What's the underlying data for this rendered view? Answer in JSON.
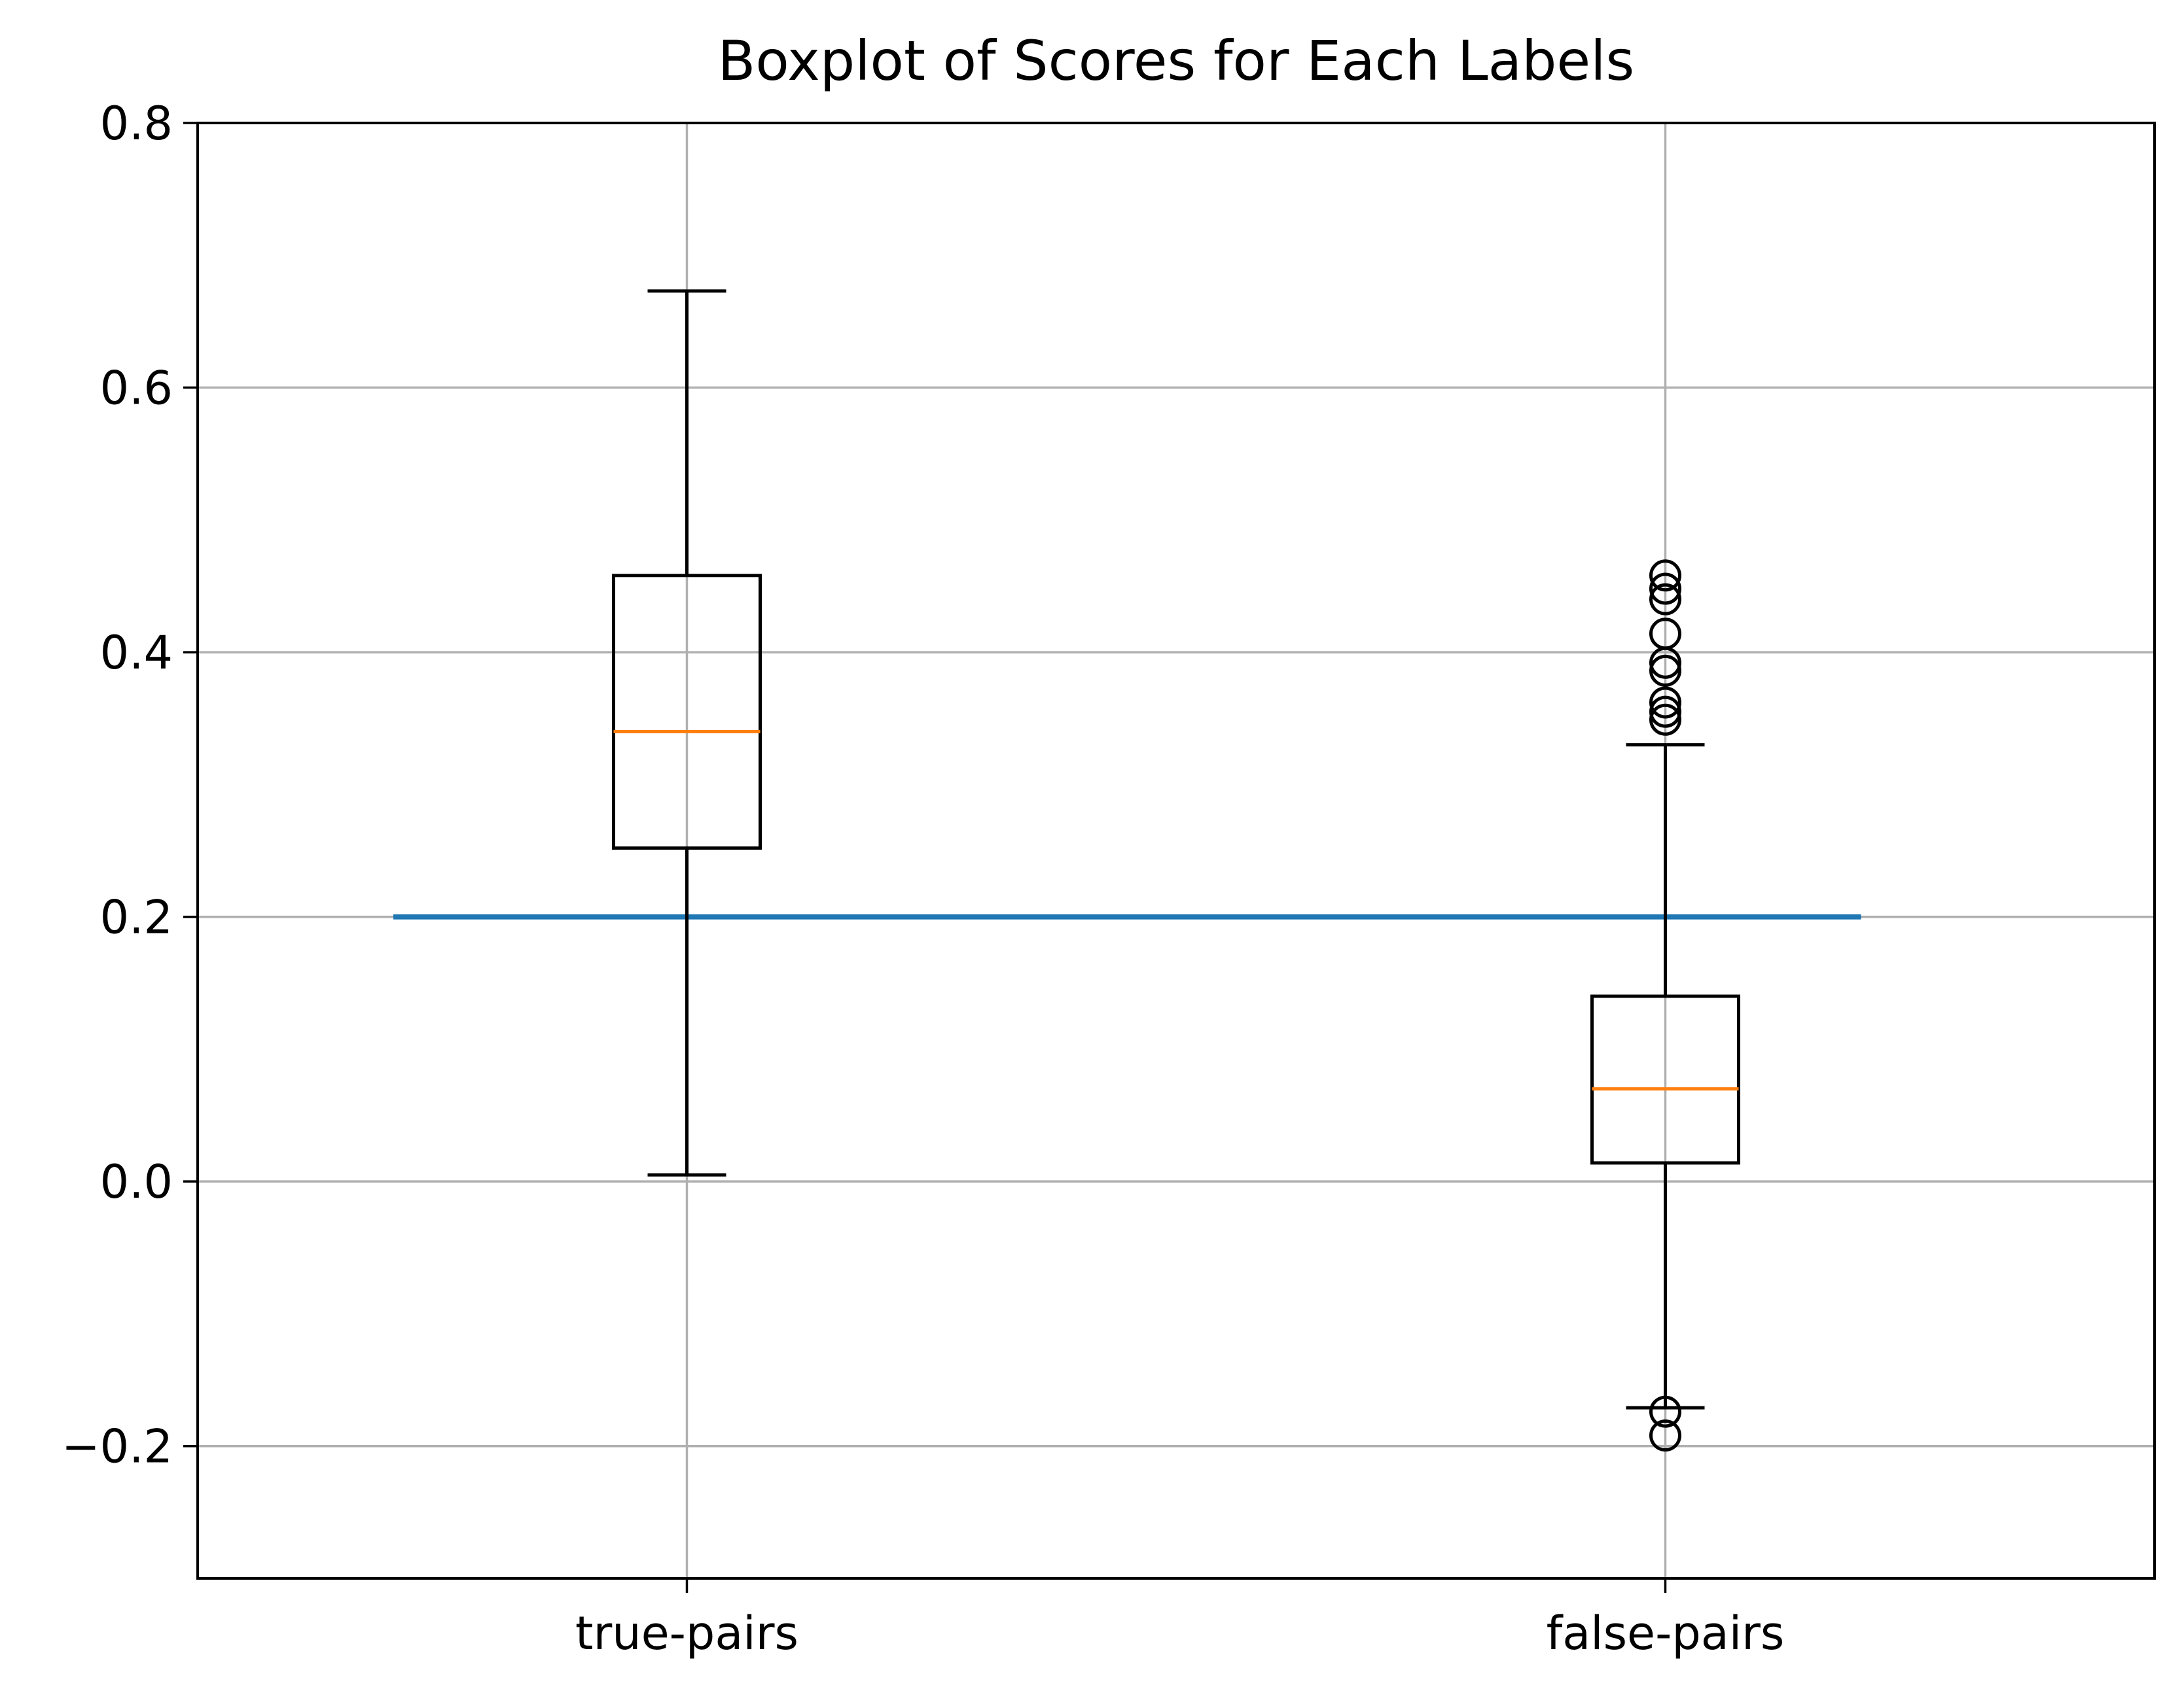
{
  "chart_data": {
    "type": "boxplot",
    "title": "Boxplot of Scores for Each Labels",
    "xlabel": "",
    "ylabel": "",
    "categories": [
      "true-pairs",
      "false-pairs"
    ],
    "ylim": [
      -0.3,
      0.8
    ],
    "yticks": [
      -0.2,
      0.0,
      0.2,
      0.4,
      0.6,
      0.8
    ],
    "ytick_labels": [
      "−0.2",
      "0.0",
      "0.2",
      "0.4",
      "0.6",
      "0.8"
    ],
    "grid": true,
    "boxes": [
      {
        "category": "true-pairs",
        "whisker_low": 0.005,
        "q1": 0.252,
        "median": 0.34,
        "q3": 0.458,
        "whisker_high": 0.673,
        "outliers": []
      },
      {
        "category": "false-pairs",
        "whisker_low": -0.171,
        "q1": 0.014,
        "median": 0.07,
        "q3": 0.14,
        "whisker_high": 0.33,
        "outliers": [
          0.458,
          0.448,
          0.44,
          0.414,
          0.392,
          0.386,
          0.362,
          0.355,
          0.349,
          -0.174,
          -0.192
        ]
      }
    ],
    "reference_line": {
      "y": 0.2,
      "x_range": [
        0.7,
        2.2
      ],
      "color": "#1f77b4"
    },
    "colors": {
      "box": "#000000",
      "median": "#ff7f0e",
      "grid": "#b0b0b0",
      "axes": "#000000"
    }
  }
}
